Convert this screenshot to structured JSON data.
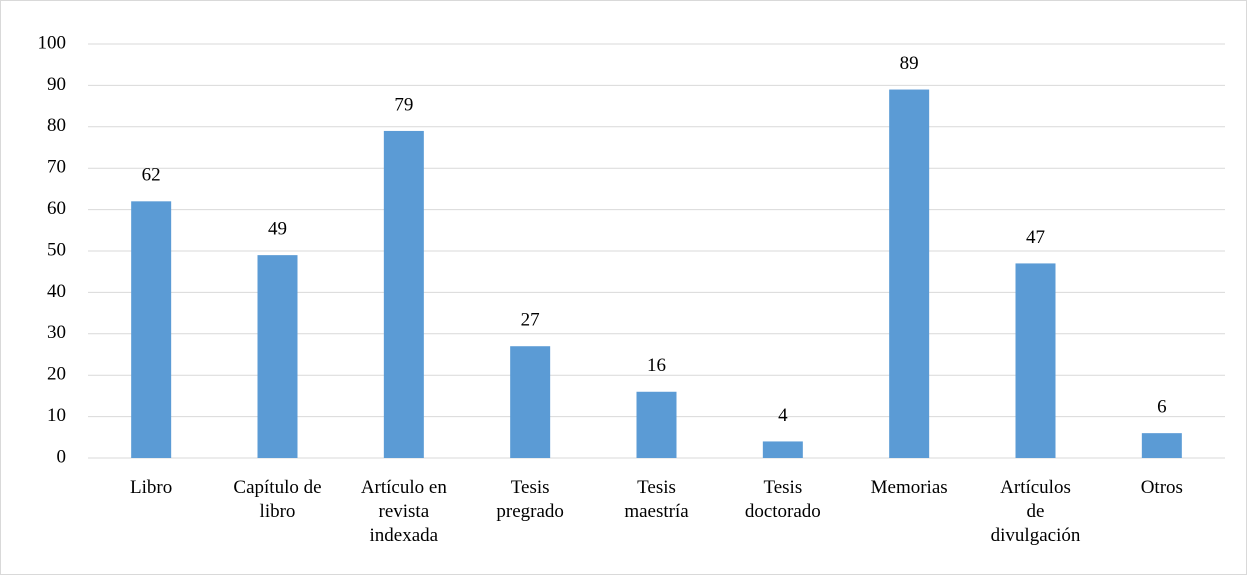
{
  "chart_data": {
    "type": "bar",
    "categories": [
      "Libro",
      "Capítulo de\nlibro",
      "Artículo en\nrevista\nindexada",
      "Tesis\npregrado",
      "Tesis\nmaestría",
      "Tesis\ndoctorado",
      "Memorias",
      "Artículos\nde\ndivulgación",
      "Otros"
    ],
    "values": [
      62,
      49,
      79,
      27,
      16,
      4,
      89,
      47,
      6
    ],
    "color": "#5b9bd5",
    "ylim": [
      0,
      100
    ],
    "yticks": [
      0,
      10,
      20,
      30,
      40,
      50,
      60,
      70,
      80,
      90,
      100
    ],
    "grid": true,
    "data_labels": true
  }
}
